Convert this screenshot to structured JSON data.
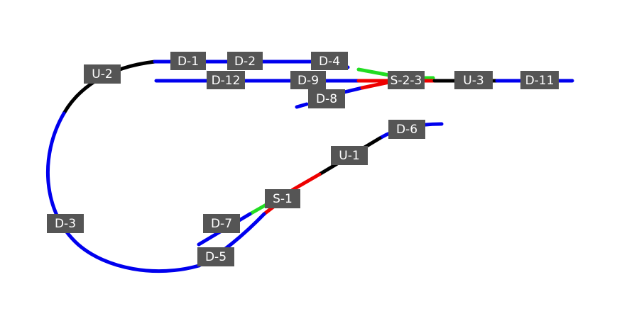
{
  "colors": {
    "occupied_free": "#0000ee",
    "unknown": "#000000",
    "switch_straight": "#22dd22",
    "switch_diverge": "#ee0000",
    "label_bg": "#555555",
    "label_text": "#ffffff"
  },
  "labels": {
    "D1": "D-1",
    "D2": "D-2",
    "D3": "D-3",
    "D4": "D-4",
    "D5": "D-5",
    "D6": "D-6",
    "D7": "D-7",
    "D8": "D-8",
    "D9": "D-9",
    "D11": "D-11",
    "D12": "D-12",
    "U1": "U-1",
    "U2": "U-2",
    "U3": "U-3",
    "S1": "S-1",
    "S23": "S-2-3"
  }
}
